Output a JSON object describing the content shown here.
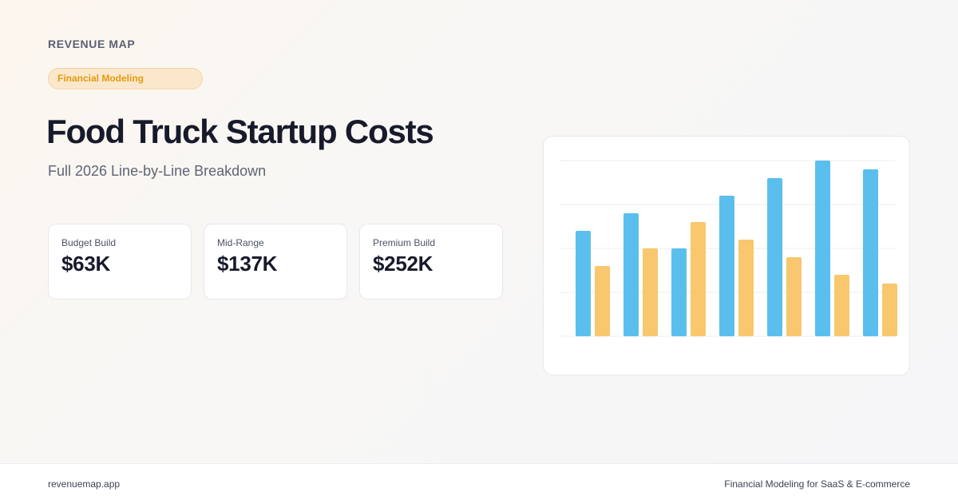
{
  "brand": {
    "name": "REVENUE MAP"
  },
  "badge": {
    "label": "Financial Modeling",
    "color": "#e39a12"
  },
  "hero": {
    "title": "Food Truck Startup Costs",
    "subtitle": "Full 2026 Line-by-Line Breakdown"
  },
  "stats": [
    {
      "label": "Budget Build",
      "value": "$63K"
    },
    {
      "label": "Mid-Range",
      "value": "$137K"
    },
    {
      "label": "Premium Build",
      "value": "$252K"
    }
  ],
  "chart_data": {
    "type": "bar",
    "ylim": [
      0,
      100
    ],
    "grid": true,
    "series": [
      {
        "color": "#5bbfee",
        "values": [
          60,
          70,
          50,
          80,
          90,
          100,
          95
        ]
      },
      {
        "color": "#f8c76e",
        "values": [
          40,
          50,
          65,
          55,
          45,
          35,
          30
        ]
      }
    ]
  },
  "footer": {
    "site": "revenuemap.app",
    "tagline": "Financial Modeling for SaaS & E-commerce"
  }
}
